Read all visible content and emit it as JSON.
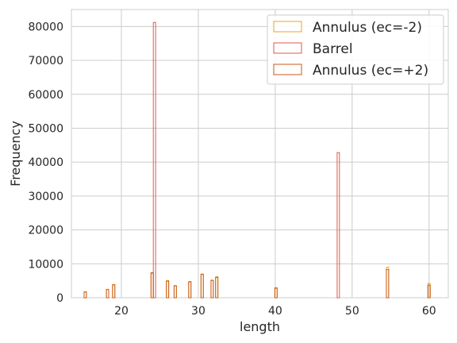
{
  "chart_data": {
    "type": "bar",
    "style": "step-histogram",
    "xlabel": "length",
    "ylabel": "Frequency",
    "xlim": [
      13.5,
      62.5
    ],
    "ylim": [
      0,
      85000
    ],
    "x_ticks": [
      20,
      30,
      40,
      50,
      60
    ],
    "y_ticks": [
      0,
      10000,
      20000,
      30000,
      40000,
      50000,
      60000,
      70000,
      80000
    ],
    "grid": true,
    "legend_position": "top-right",
    "bin_width": 0.3,
    "series": [
      {
        "name": "Annulus (ec=-2)",
        "color": "#e6a91f",
        "points": [
          [
            15.3,
            1800
          ],
          [
            18.2,
            2500
          ],
          [
            19.0,
            3900
          ],
          [
            24.0,
            7200
          ],
          [
            26.0,
            5100
          ],
          [
            27.0,
            3600
          ],
          [
            28.9,
            4800
          ],
          [
            30.5,
            7000
          ],
          [
            31.8,
            5200
          ],
          [
            32.4,
            6200
          ],
          [
            40.1,
            3000
          ],
          [
            54.6,
            9000
          ],
          [
            60.0,
            4200
          ]
        ]
      },
      {
        "name": "Barrel",
        "color": "#e05a4a",
        "points": [
          [
            24.3,
            81200
          ],
          [
            48.2,
            42800
          ]
        ]
      },
      {
        "name": "Annulus (ec=+2)",
        "color": "#c95a1a",
        "points": [
          [
            15.3,
            1700
          ],
          [
            18.2,
            2400
          ],
          [
            19.0,
            3800
          ],
          [
            24.0,
            7400
          ],
          [
            26.0,
            4900
          ],
          [
            27.0,
            3500
          ],
          [
            28.9,
            4700
          ],
          [
            30.5,
            6900
          ],
          [
            31.8,
            5100
          ],
          [
            32.4,
            6000
          ],
          [
            40.1,
            2800
          ],
          [
            54.6,
            8300
          ],
          [
            60.0,
            3700
          ]
        ]
      }
    ]
  }
}
